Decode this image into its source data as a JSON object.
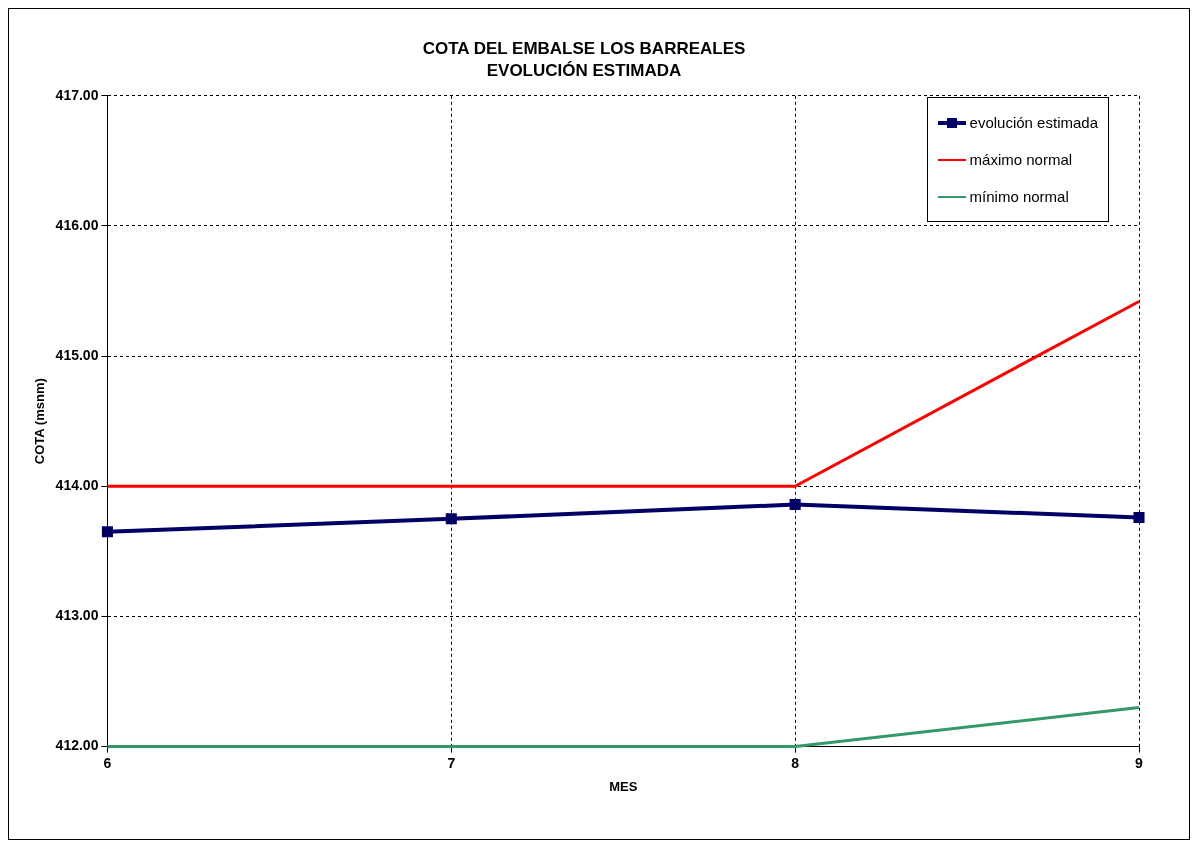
{
  "chart_data": {
    "type": "line",
    "title": "COTA DEL EMBALSE LOS BARREALES",
    "subtitle": "EVOLUCIÓN ESTIMADA",
    "xlabel": "MES",
    "ylabel": "COTA (msnm)",
    "x": [
      6,
      7,
      8,
      9
    ],
    "series": [
      {
        "name": "evolución estimada",
        "color": "#000066",
        "values": [
          413.65,
          413.75,
          413.86,
          413.76
        ],
        "marker": "square"
      },
      {
        "name": "máximo normal",
        "color": "#ff0000",
        "values": [
          414,
          414,
          414,
          415.42
        ],
        "marker": "none"
      },
      {
        "name": "mínimo normal",
        "color": "#339966",
        "values": [
          412,
          412,
          412,
          412.3
        ],
        "marker": "none"
      }
    ],
    "xlim": [
      6,
      9
    ],
    "xticks": [
      6,
      7,
      8,
      9
    ],
    "ylim": [
      412,
      417
    ],
    "yticks": [
      {
        "value": 412,
        "label": "412.00"
      },
      {
        "value": 413,
        "label": "413.00"
      },
      {
        "value": 414,
        "label": "414.00"
      },
      {
        "value": 415,
        "label": "415.00"
      },
      {
        "value": 416,
        "label": "416.00"
      },
      {
        "value": 417,
        "label": "417.00"
      }
    ],
    "grid": true,
    "legend": "top right",
    "line_style": "solid"
  }
}
